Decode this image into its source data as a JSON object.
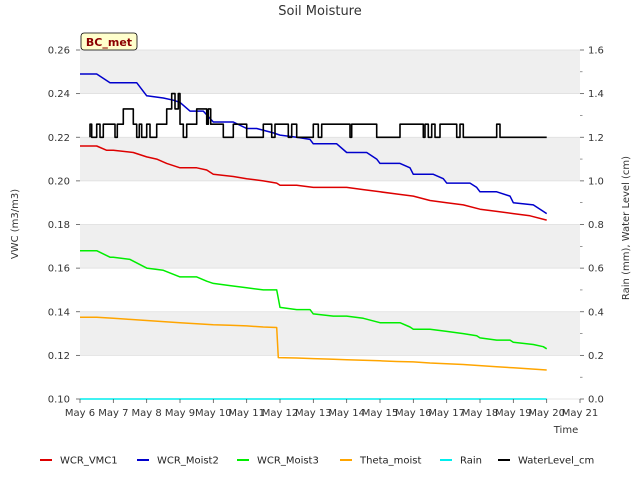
{
  "chart_data": {
    "type": "line",
    "title": "Soil Moisture",
    "badge": "BC_met",
    "xlabel": "Time",
    "ylabel_left": "VWC (m3/m3)",
    "ylabel_right": "Rain (mm), Water Level (cm)",
    "xlim": [
      6,
      21
    ],
    "ylim_left": [
      0.1,
      0.26
    ],
    "ylim_right": [
      0.0,
      1.6
    ],
    "x_ticks": [
      {
        "value": 6,
        "label": "May 6"
      },
      {
        "value": 7,
        "label": "May 7"
      },
      {
        "value": 8,
        "label": "May 8"
      },
      {
        "value": 9,
        "label": "May 9"
      },
      {
        "value": 10,
        "label": "May 10"
      },
      {
        "value": 11,
        "label": "May 11"
      },
      {
        "value": 12,
        "label": "May 12"
      },
      {
        "value": 13,
        "label": "May 13"
      },
      {
        "value": 14,
        "label": "May 14"
      },
      {
        "value": 15,
        "label": "May 15"
      },
      {
        "value": 16,
        "label": "May 16"
      },
      {
        "value": 17,
        "label": "May 17"
      },
      {
        "value": 18,
        "label": "May 18"
      },
      {
        "value": 19,
        "label": "May 19"
      },
      {
        "value": 20,
        "label": "May 20"
      },
      {
        "value": 21,
        "label": "May 21"
      }
    ],
    "y_ticks_left": [
      {
        "value": 0.1,
        "label": "0.10"
      },
      {
        "value": 0.12,
        "label": "0.12"
      },
      {
        "value": 0.14,
        "label": "0.14"
      },
      {
        "value": 0.16,
        "label": "0.16"
      },
      {
        "value": 0.18,
        "label": "0.18"
      },
      {
        "value": 0.2,
        "label": "0.20"
      },
      {
        "value": 0.22,
        "label": "0.22"
      },
      {
        "value": 0.24,
        "label": "0.24"
      },
      {
        "value": 0.26,
        "label": "0.26"
      }
    ],
    "y_ticks_right": [
      {
        "value": 0.0,
        "label": "0.0"
      },
      {
        "value": 0.2,
        "label": "0.2"
      },
      {
        "value": 0.4,
        "label": "0.4"
      },
      {
        "value": 0.6,
        "label": "0.6"
      },
      {
        "value": 0.8,
        "label": "0.8"
      },
      {
        "value": 1.0,
        "label": "1.0"
      },
      {
        "value": 1.2,
        "label": "1.2"
      },
      {
        "value": 1.4,
        "label": "1.4"
      },
      {
        "value": 1.6,
        "label": "1.6"
      }
    ],
    "series": [
      {
        "name": "WCR_VMC1",
        "color": "#dd0000",
        "axis": "left",
        "x": [
          6.0,
          6.5,
          6.8,
          7.0,
          7.6,
          8.0,
          8.3,
          8.6,
          9.0,
          9.5,
          9.8,
          10.0,
          10.6,
          11.0,
          11.5,
          11.9,
          12.0,
          12.5,
          13.0,
          13.5,
          14.0,
          14.5,
          15.0,
          15.5,
          16.0,
          16.5,
          17.0,
          17.5,
          18.0,
          18.5,
          19.0,
          19.5,
          20.0
        ],
        "y": [
          0.216,
          0.216,
          0.214,
          0.214,
          0.213,
          0.211,
          0.21,
          0.208,
          0.206,
          0.206,
          0.205,
          0.203,
          0.202,
          0.201,
          0.2,
          0.199,
          0.198,
          0.198,
          0.197,
          0.197,
          0.197,
          0.196,
          0.195,
          0.194,
          0.193,
          0.191,
          0.19,
          0.189,
          0.187,
          0.186,
          0.185,
          0.184,
          0.182
        ]
      },
      {
        "name": "WCR_Moist2",
        "color": "#0000cc",
        "axis": "left",
        "x": [
          6.0,
          6.5,
          6.9,
          7.0,
          7.7,
          8.0,
          8.5,
          8.8,
          9.0,
          9.3,
          9.7,
          10.0,
          10.6,
          11.0,
          11.3,
          11.8,
          12.0,
          12.5,
          12.9,
          13.0,
          13.7,
          14.0,
          14.6,
          14.9,
          15.0,
          15.6,
          15.9,
          16.0,
          16.6,
          16.9,
          17.0,
          17.7,
          17.9,
          18.0,
          18.5,
          18.9,
          19.0,
          19.6,
          19.9,
          20.0
        ],
        "y": [
          0.249,
          0.249,
          0.245,
          0.245,
          0.245,
          0.239,
          0.238,
          0.237,
          0.236,
          0.232,
          0.232,
          0.227,
          0.227,
          0.224,
          0.224,
          0.222,
          0.221,
          0.22,
          0.219,
          0.217,
          0.217,
          0.213,
          0.213,
          0.21,
          0.208,
          0.208,
          0.206,
          0.203,
          0.203,
          0.201,
          0.199,
          0.199,
          0.197,
          0.195,
          0.195,
          0.193,
          0.19,
          0.189,
          0.186,
          0.185
        ]
      },
      {
        "name": "WCR_Moist3",
        "color": "#00ee00",
        "axis": "left",
        "x": [
          6.0,
          6.5,
          6.9,
          7.0,
          7.5,
          8.0,
          8.5,
          9.0,
          9.5,
          9.8,
          10.0,
          10.5,
          11.0,
          11.5,
          11.9,
          12.0,
          12.5,
          12.9,
          13.0,
          13.6,
          14.0,
          14.5,
          15.0,
          15.6,
          15.9,
          16.0,
          16.5,
          17.0,
          17.5,
          17.9,
          18.0,
          18.5,
          18.9,
          19.0,
          19.6,
          19.9,
          20.0
        ],
        "y": [
          0.168,
          0.168,
          0.165,
          0.165,
          0.164,
          0.16,
          0.159,
          0.156,
          0.156,
          0.154,
          0.153,
          0.152,
          0.151,
          0.15,
          0.15,
          0.142,
          0.141,
          0.141,
          0.139,
          0.138,
          0.138,
          0.137,
          0.135,
          0.135,
          0.133,
          0.132,
          0.132,
          0.131,
          0.13,
          0.129,
          0.128,
          0.127,
          0.127,
          0.126,
          0.125,
          0.124,
          0.123
        ]
      },
      {
        "name": "Theta_moist",
        "color": "#ffa500",
        "axis": "left",
        "x": [
          6.0,
          6.5,
          7.0,
          7.5,
          8.0,
          8.5,
          9.0,
          9.5,
          10.0,
          10.5,
          11.0,
          11.5,
          11.9,
          11.95,
          12.5,
          13.0,
          13.5,
          14.0,
          14.5,
          15.0,
          15.5,
          16.0,
          16.5,
          17.0,
          17.5,
          18.0,
          18.5,
          19.0,
          19.5,
          20.0
        ],
        "y": [
          0.1375,
          0.1375,
          0.137,
          0.1365,
          0.136,
          0.1355,
          0.135,
          0.1345,
          0.134,
          0.1338,
          0.1335,
          0.133,
          0.1328,
          0.119,
          0.1188,
          0.1185,
          0.1183,
          0.118,
          0.1178,
          0.1175,
          0.1172,
          0.117,
          0.1165,
          0.1162,
          0.1158,
          0.1153,
          0.1148,
          0.1143,
          0.1138,
          0.1133
        ]
      },
      {
        "name": "Rain",
        "color": "#00eeee",
        "axis": "right",
        "x": [
          6.0,
          20.0
        ],
        "y": [
          0.0,
          0.0
        ]
      },
      {
        "name": "WaterLevel_cm",
        "color": "#000000",
        "axis": "right",
        "x": [
          6.3,
          6.3,
          6.35,
          6.35,
          6.5,
          6.5,
          6.6,
          6.6,
          6.7,
          6.7,
          7.05,
          7.05,
          7.12,
          7.12,
          7.3,
          7.3,
          7.6,
          7.6,
          7.7,
          7.7,
          7.78,
          7.78,
          7.85,
          7.85,
          8.0,
          8.0,
          8.1,
          8.1,
          8.3,
          8.3,
          8.6,
          8.6,
          8.75,
          8.75,
          8.85,
          8.85,
          8.95,
          8.95,
          9.0,
          9.0,
          9.1,
          9.1,
          9.2,
          9.2,
          9.5,
          9.5,
          9.8,
          9.8,
          9.85,
          9.85,
          9.92,
          9.92,
          10.3,
          10.3,
          10.6,
          10.6,
          11.0,
          11.0,
          11.5,
          11.5,
          11.75,
          11.75,
          11.85,
          11.85,
          12.25,
          12.25,
          12.35,
          12.35,
          12.5,
          12.5,
          13.0,
          13.0,
          13.15,
          13.15,
          13.25,
          13.25,
          14.1,
          14.1,
          14.15,
          14.15,
          14.9,
          14.9,
          15.6,
          15.6,
          16.3,
          16.3,
          16.35,
          16.35,
          16.45,
          16.45,
          16.55,
          16.55,
          16.65,
          16.65,
          16.8,
          16.8,
          17.3,
          17.3,
          17.4,
          17.4,
          17.5,
          17.5,
          18.5,
          18.5,
          18.6,
          18.6,
          20.0
        ],
        "y": [
          1.2,
          1.26,
          1.26,
          1.2,
          1.2,
          1.26,
          1.26,
          1.2,
          1.2,
          1.26,
          1.26,
          1.2,
          1.2,
          1.26,
          1.26,
          1.33,
          1.33,
          1.26,
          1.26,
          1.2,
          1.2,
          1.26,
          1.26,
          1.2,
          1.2,
          1.26,
          1.26,
          1.2,
          1.2,
          1.26,
          1.26,
          1.33,
          1.33,
          1.4,
          1.4,
          1.33,
          1.33,
          1.4,
          1.4,
          1.26,
          1.26,
          1.2,
          1.2,
          1.26,
          1.26,
          1.33,
          1.33,
          1.26,
          1.26,
          1.33,
          1.33,
          1.26,
          1.26,
          1.2,
          1.2,
          1.26,
          1.26,
          1.2,
          1.2,
          1.26,
          1.26,
          1.2,
          1.2,
          1.26,
          1.26,
          1.2,
          1.2,
          1.26,
          1.26,
          1.2,
          1.2,
          1.26,
          1.26,
          1.2,
          1.2,
          1.26,
          1.26,
          1.2,
          1.2,
          1.26,
          1.26,
          1.2,
          1.2,
          1.26,
          1.26,
          1.2,
          1.2,
          1.26,
          1.26,
          1.2,
          1.2,
          1.26,
          1.26,
          1.2,
          1.2,
          1.26,
          1.26,
          1.2,
          1.2,
          1.26,
          1.26,
          1.2,
          1.2,
          1.26,
          1.26,
          1.2,
          1.2
        ]
      }
    ]
  }
}
